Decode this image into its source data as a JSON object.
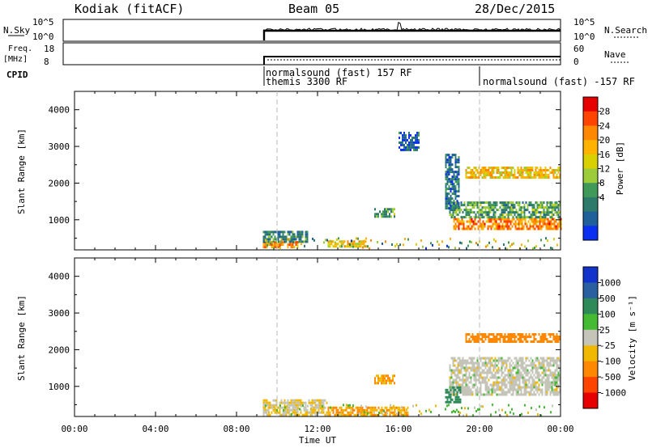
{
  "header": {
    "station": "Kodiak (fitACF)",
    "beam": "Beam 05",
    "date": "28/Dec/2015"
  },
  "strips": {
    "nsky": {
      "label": "N.Sky",
      "ticks": [
        "10^5",
        "10^0"
      ]
    },
    "nsearch": {
      "label": "N.Search",
      "ticks": [
        "10^5",
        "10^0"
      ]
    },
    "freq": {
      "label_line1": "Freq.",
      "label_line2": "[MHz]",
      "ticks": [
        "18",
        "8"
      ]
    },
    "nave": {
      "label": "Nave",
      "ticks": [
        "60",
        "0"
      ]
    },
    "cpid": {
      "label": "CPID",
      "programs": [
        "normalsound (fast) 157 RF",
        "themis 3300 RF",
        "normalsound (fast) -157 RF"
      ]
    }
  },
  "axes": {
    "ylabel": "Slant Range [km]",
    "xlabel": "Time UT",
    "yticks": [
      "4000",
      "3000",
      "2000",
      "1000"
    ],
    "xticks": [
      "00:00",
      "04:00",
      "08:00",
      "12:00",
      "16:00",
      "20:00",
      "00:00"
    ]
  },
  "colorbars": {
    "power": {
      "label": "Power [dB]",
      "ticks": [
        "28",
        "24",
        "20",
        "16",
        "12",
        "8",
        "4"
      ],
      "colors": [
        "#e60000",
        "#ff4400",
        "#ff8800",
        "#ffb300",
        "#d8d000",
        "#9dcc3a",
        "#3f9a5a",
        "#2e7a6a",
        "#1f5f9a",
        "#0a2ff0"
      ]
    },
    "velocity": {
      "label": "Velocity [m s⁻¹]",
      "ticks": [
        "1000",
        "500",
        "100",
        "25",
        "-25",
        "-100",
        "-500",
        "-1000"
      ],
      "colors": [
        "#1133cc",
        "#2a5fa0",
        "#2f8a5a",
        "#44bb33",
        "#c4c4b8",
        "#f0b800",
        "#ff8800",
        "#ff4400",
        "#e60000"
      ]
    }
  },
  "chart_data": {
    "type": "heatmap",
    "x_unit": "hours UT",
    "xlim": [
      0,
      24
    ],
    "ylim": [
      180,
      4500
    ],
    "power_panel": {
      "series": [
        {
          "x": [
            9.3,
            11.0
          ],
          "y": [
            230,
            420
          ],
          "value": 24
        },
        {
          "x": [
            9.3,
            11.5
          ],
          "y": [
            420,
            700
          ],
          "value": 10
        },
        {
          "x": [
            12.5,
            14.5
          ],
          "y": [
            260,
            440
          ],
          "value": 20
        },
        {
          "x": [
            14.8,
            15.8
          ],
          "y": [
            1080,
            1320
          ],
          "value": 12
        },
        {
          "x": [
            16.0,
            17.0
          ],
          "y": [
            2900,
            3400
          ],
          "value": 6
        },
        {
          "x": [
            18.7,
            24.0
          ],
          "y": [
            750,
            1050
          ],
          "value": 24
        },
        {
          "x": [
            18.5,
            24.0
          ],
          "y": [
            1050,
            1500
          ],
          "value": 12
        },
        {
          "x": [
            19.3,
            24.0
          ],
          "y": [
            2150,
            2450
          ],
          "value": 20
        },
        {
          "x": [
            18.3,
            19.0
          ],
          "y": [
            1300,
            2800
          ],
          "value": 8
        }
      ]
    },
    "velocity_panel": {
      "series": [
        {
          "x": [
            9.3,
            12.5
          ],
          "y": [
            230,
            650
          ],
          "value": -25
        },
        {
          "x": [
            12.5,
            16.5
          ],
          "y": [
            230,
            450
          ],
          "value": -100
        },
        {
          "x": [
            14.8,
            15.8
          ],
          "y": [
            1080,
            1320
          ],
          "value": -100
        },
        {
          "x": [
            18.5,
            24.0
          ],
          "y": [
            800,
            1800
          ],
          "value": 0
        },
        {
          "x": [
            19.3,
            24.0
          ],
          "y": [
            2200,
            2450
          ],
          "value": -200
        },
        {
          "x": [
            18.3,
            19.1
          ],
          "y": [
            600,
            1000
          ],
          "value": 150
        }
      ]
    }
  }
}
